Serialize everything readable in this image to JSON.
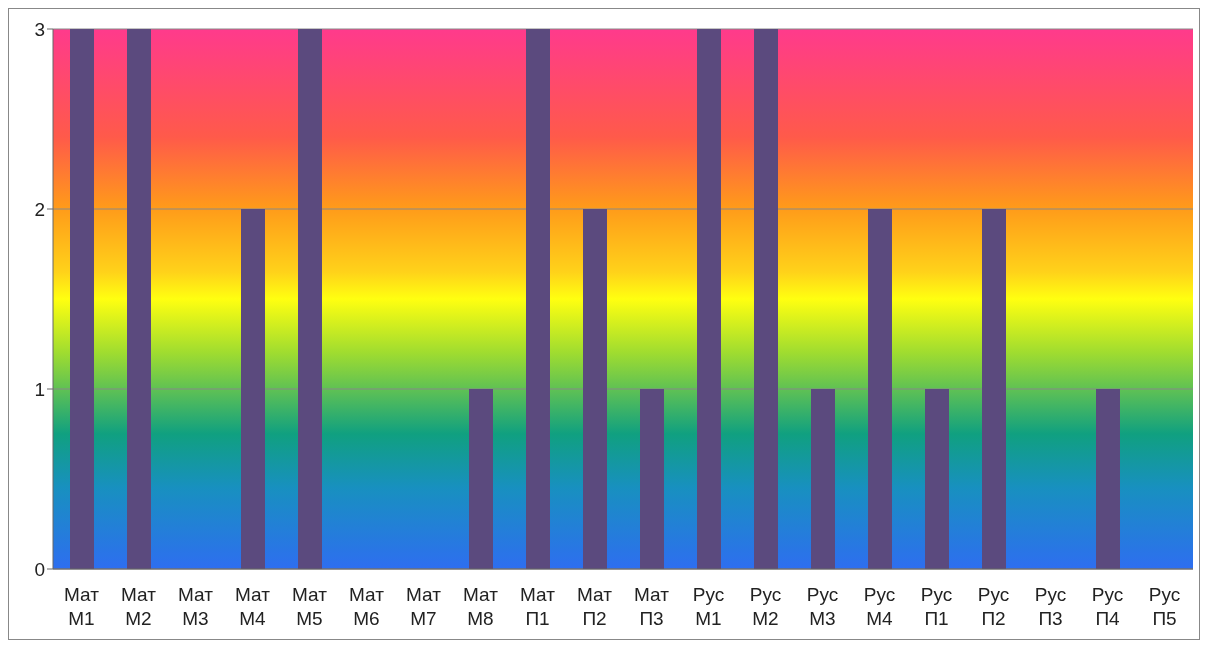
{
  "chart_data": {
    "type": "bar",
    "categories": [
      "Мат М1",
      "Мат М2",
      "Мат М3",
      "Мат М4",
      "Мат М5",
      "Мат М6",
      "Мат М7",
      "Мат М8",
      "Мат П1",
      "Мат П2",
      "Мат П3",
      "Рус М1",
      "Рус М2",
      "Рус М3",
      "Рус М4",
      "Рус П1",
      "Рус П2",
      "Рус П3",
      "Рус П4",
      "Рус П5"
    ],
    "values": [
      3,
      3,
      0,
      2,
      3,
      0,
      0,
      1,
      3,
      2,
      1,
      3,
      3,
      1,
      2,
      1,
      2,
      0,
      1,
      0
    ],
    "color": "#5b4a7e",
    "ylim": [
      0,
      3
    ],
    "yticks": [
      0,
      1,
      2,
      3
    ],
    "grid": "y",
    "legend": false
  }
}
